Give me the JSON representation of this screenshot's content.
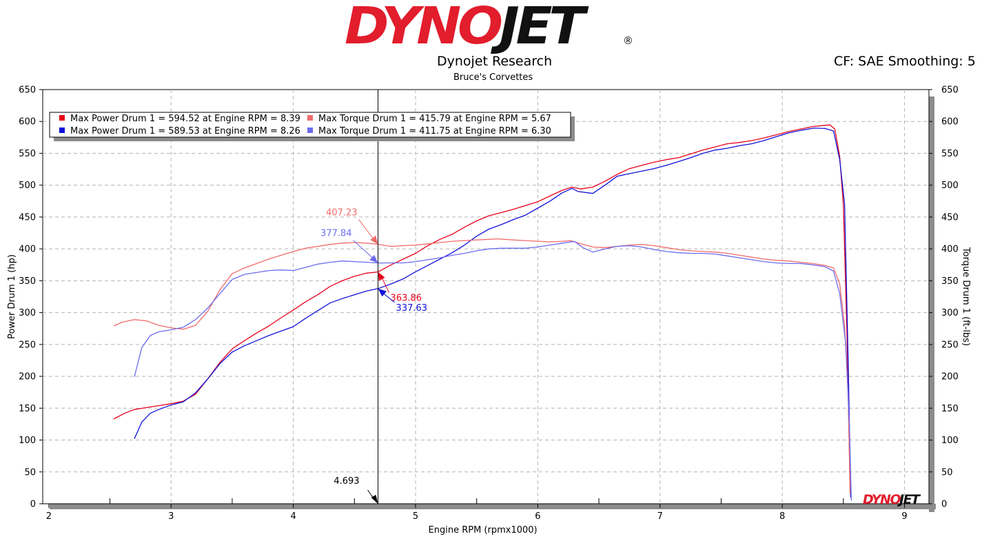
{
  "header": {
    "logo_part1": "DYNO",
    "logo_part2": "JET",
    "logo_reg": "®",
    "title": "Dynojet Research",
    "subtitle": "Bruce's Corvettes",
    "cf_info": "CF: SAE Smoothing: 5"
  },
  "colors": {
    "run1_power": "#e8001a",
    "run1_torque": "#f26b6b",
    "run2_power": "#1010d8",
    "run2_torque": "#6b6bf0",
    "cursor": "#000000"
  },
  "chart_data": {
    "type": "line",
    "xlabel": "Engine RPM (rpmx1000)",
    "ylabel": "Power Drum 1 (hp)",
    "y2label": "Torque Drum 1 (ft-lbs)",
    "xlim": [
      1.95,
      9.2
    ],
    "ylim": [
      0,
      650
    ],
    "y2lim": [
      0,
      650
    ],
    "x_ticks": [
      "2",
      "3",
      "4",
      "5",
      "6",
      "7",
      "8",
      "9"
    ],
    "y_ticks": [
      "0",
      "50",
      "100",
      "150",
      "200",
      "250",
      "300",
      "350",
      "400",
      "450",
      "500",
      "550",
      "600",
      "650"
    ],
    "grid": true,
    "legend_position": "top-left",
    "legend": [
      "Max Power Drum 1 = 594.52 at Engine RPM = 8.39",
      "Max Power Drum 1 = 589.53 at Engine RPM = 8.26",
      "Max Torque Drum 1 = 415.79 at Engine RPM = 5.67",
      "Max Torque Drum 1 = 411.75 at Engine RPM = 6.30"
    ],
    "cursor": {
      "x": 4.693,
      "label": "4.693",
      "readouts": [
        {
          "series": 2,
          "value": 407.23,
          "label": "407.23"
        },
        {
          "series": 3,
          "value": 377.84,
          "label": "377.84"
        },
        {
          "series": 0,
          "value": 363.86,
          "label": "363.86"
        },
        {
          "series": 1,
          "value": 337.63,
          "label": "337.63"
        }
      ]
    },
    "series": [
      {
        "axis": "left",
        "points": [
          [
            2.53,
            133
          ],
          [
            2.62,
            142
          ],
          [
            2.7,
            148
          ],
          [
            2.8,
            151
          ],
          [
            2.9,
            154
          ],
          [
            3.0,
            157
          ],
          [
            3.1,
            161
          ],
          [
            3.2,
            172
          ],
          [
            3.3,
            196
          ],
          [
            3.4,
            222
          ],
          [
            3.5,
            243
          ],
          [
            3.6,
            256
          ],
          [
            3.7,
            268
          ],
          [
            3.8,
            279
          ],
          [
            3.9,
            292
          ],
          [
            4.0,
            304
          ],
          [
            4.1,
            317
          ],
          [
            4.2,
            328
          ],
          [
            4.3,
            341
          ],
          [
            4.4,
            350
          ],
          [
            4.5,
            357
          ],
          [
            4.6,
            362
          ],
          [
            4.693,
            363.86
          ],
          [
            4.8,
            375
          ],
          [
            4.9,
            384
          ],
          [
            5.0,
            393
          ],
          [
            5.1,
            405
          ],
          [
            5.2,
            415
          ],
          [
            5.3,
            423
          ],
          [
            5.4,
            434
          ],
          [
            5.5,
            444
          ],
          [
            5.6,
            452
          ],
          [
            5.7,
            457
          ],
          [
            5.8,
            462
          ],
          [
            5.9,
            468
          ],
          [
            6.0,
            474
          ],
          [
            6.1,
            483
          ],
          [
            6.2,
            492
          ],
          [
            6.28,
            497
          ],
          [
            6.35,
            494
          ],
          [
            6.45,
            497
          ],
          [
            6.55,
            506
          ],
          [
            6.65,
            517
          ],
          [
            6.75,
            526
          ],
          [
            6.85,
            531
          ],
          [
            6.95,
            536
          ],
          [
            7.05,
            540
          ],
          [
            7.15,
            543
          ],
          [
            7.25,
            549
          ],
          [
            7.35,
            555
          ],
          [
            7.45,
            560
          ],
          [
            7.55,
            565
          ],
          [
            7.65,
            567
          ],
          [
            7.75,
            570
          ],
          [
            7.85,
            574
          ],
          [
            7.95,
            579
          ],
          [
            8.05,
            584
          ],
          [
            8.15,
            588
          ],
          [
            8.25,
            592
          ],
          [
            8.35,
            594
          ],
          [
            8.39,
            594.52
          ],
          [
            8.43,
            588
          ],
          [
            8.47,
            545
          ],
          [
            8.5,
            470
          ],
          [
            8.53,
            260
          ],
          [
            8.555,
            20
          ]
        ]
      },
      {
        "axis": "left",
        "points": [
          [
            2.7,
            102
          ],
          [
            2.76,
            128
          ],
          [
            2.83,
            142
          ],
          [
            2.9,
            148
          ],
          [
            3.0,
            155
          ],
          [
            3.1,
            160
          ],
          [
            3.2,
            174
          ],
          [
            3.3,
            196
          ],
          [
            3.4,
            220
          ],
          [
            3.5,
            238
          ],
          [
            3.6,
            248
          ],
          [
            3.7,
            256
          ],
          [
            3.8,
            264
          ],
          [
            3.9,
            271
          ],
          [
            4.0,
            278
          ],
          [
            4.1,
            291
          ],
          [
            4.2,
            303
          ],
          [
            4.3,
            315
          ],
          [
            4.4,
            322
          ],
          [
            4.5,
            328
          ],
          [
            4.6,
            334
          ],
          [
            4.693,
            337.63
          ],
          [
            4.8,
            345
          ],
          [
            4.9,
            353
          ],
          [
            5.0,
            364
          ],
          [
            5.1,
            374
          ],
          [
            5.2,
            384
          ],
          [
            5.3,
            394
          ],
          [
            5.4,
            406
          ],
          [
            5.5,
            420
          ],
          [
            5.6,
            431
          ],
          [
            5.7,
            438
          ],
          [
            5.8,
            446
          ],
          [
            5.9,
            453
          ],
          [
            6.0,
            464
          ],
          [
            6.1,
            475
          ],
          [
            6.2,
            488
          ],
          [
            6.28,
            495
          ],
          [
            6.33,
            490
          ],
          [
            6.45,
            487
          ],
          [
            6.55,
            500
          ],
          [
            6.65,
            514
          ],
          [
            6.75,
            518
          ],
          [
            6.85,
            522
          ],
          [
            6.95,
            526
          ],
          [
            7.05,
            531
          ],
          [
            7.15,
            537
          ],
          [
            7.25,
            543
          ],
          [
            7.35,
            550
          ],
          [
            7.45,
            555
          ],
          [
            7.55,
            558
          ],
          [
            7.65,
            562
          ],
          [
            7.75,
            565
          ],
          [
            7.85,
            570
          ],
          [
            7.95,
            576
          ],
          [
            8.05,
            582
          ],
          [
            8.15,
            586
          ],
          [
            8.26,
            589.53
          ],
          [
            8.35,
            589
          ],
          [
            8.42,
            585
          ],
          [
            8.47,
            540
          ],
          [
            8.51,
            470
          ],
          [
            8.54,
            220
          ],
          [
            8.56,
            10
          ]
        ]
      },
      {
        "axis": "right",
        "points": [
          [
            2.53,
            279
          ],
          [
            2.6,
            285
          ],
          [
            2.7,
            289
          ],
          [
            2.8,
            287
          ],
          [
            2.9,
            280
          ],
          [
            3.0,
            276
          ],
          [
            3.1,
            274
          ],
          [
            3.2,
            280
          ],
          [
            3.3,
            302
          ],
          [
            3.4,
            336
          ],
          [
            3.5,
            361
          ],
          [
            3.6,
            370
          ],
          [
            3.7,
            377
          ],
          [
            3.8,
            384
          ],
          [
            3.9,
            390
          ],
          [
            4.0,
            396
          ],
          [
            4.1,
            401
          ],
          [
            4.2,
            404
          ],
          [
            4.3,
            407
          ],
          [
            4.4,
            409
          ],
          [
            4.5,
            410
          ],
          [
            4.6,
            409
          ],
          [
            4.693,
            407.23
          ],
          [
            4.8,
            404
          ],
          [
            4.9,
            405
          ],
          [
            5.0,
            406
          ],
          [
            5.1,
            408
          ],
          [
            5.2,
            410
          ],
          [
            5.3,
            412
          ],
          [
            5.4,
            413
          ],
          [
            5.5,
            414
          ],
          [
            5.6,
            415
          ],
          [
            5.67,
            415.79
          ],
          [
            5.8,
            414
          ],
          [
            5.9,
            413
          ],
          [
            6.0,
            412
          ],
          [
            6.1,
            411
          ],
          [
            6.2,
            412
          ],
          [
            6.27,
            413
          ],
          [
            6.35,
            408
          ],
          [
            6.45,
            403
          ],
          [
            6.55,
            402
          ],
          [
            6.65,
            404
          ],
          [
            6.75,
            406
          ],
          [
            6.85,
            407
          ],
          [
            6.95,
            405
          ],
          [
            7.05,
            402
          ],
          [
            7.15,
            399
          ],
          [
            7.25,
            397
          ],
          [
            7.35,
            396
          ],
          [
            7.45,
            395
          ],
          [
            7.55,
            393
          ],
          [
            7.65,
            390
          ],
          [
            7.75,
            387
          ],
          [
            7.85,
            384
          ],
          [
            7.95,
            382
          ],
          [
            8.05,
            381
          ],
          [
            8.15,
            379
          ],
          [
            8.25,
            377
          ],
          [
            8.35,
            374
          ],
          [
            8.42,
            370
          ],
          [
            8.47,
            345
          ],
          [
            8.51,
            280
          ],
          [
            8.54,
            170
          ],
          [
            8.555,
            15
          ]
        ]
      },
      {
        "axis": "right",
        "points": [
          [
            2.7,
            199
          ],
          [
            2.76,
            245
          ],
          [
            2.83,
            264
          ],
          [
            2.9,
            270
          ],
          [
            3.0,
            273
          ],
          [
            3.1,
            277
          ],
          [
            3.2,
            289
          ],
          [
            3.3,
            307
          ],
          [
            3.4,
            330
          ],
          [
            3.5,
            352
          ],
          [
            3.6,
            360
          ],
          [
            3.7,
            363
          ],
          [
            3.8,
            366
          ],
          [
            3.9,
            367
          ],
          [
            4.0,
            366
          ],
          [
            4.1,
            371
          ],
          [
            4.2,
            376
          ],
          [
            4.3,
            379
          ],
          [
            4.4,
            381
          ],
          [
            4.5,
            380
          ],
          [
            4.6,
            379
          ],
          [
            4.693,
            377.84
          ],
          [
            4.8,
            378
          ],
          [
            4.9,
            378
          ],
          [
            5.0,
            380
          ],
          [
            5.1,
            383
          ],
          [
            5.2,
            386
          ],
          [
            5.3,
            390
          ],
          [
            5.4,
            393
          ],
          [
            5.5,
            397
          ],
          [
            5.6,
            400
          ],
          [
            5.7,
            401
          ],
          [
            5.8,
            401
          ],
          [
            5.9,
            401
          ],
          [
            6.0,
            403
          ],
          [
            6.1,
            406
          ],
          [
            6.2,
            409
          ],
          [
            6.3,
            411.75
          ],
          [
            6.37,
            402
          ],
          [
            6.45,
            395
          ],
          [
            6.55,
            400
          ],
          [
            6.65,
            404
          ],
          [
            6.75,
            405
          ],
          [
            6.85,
            403
          ],
          [
            6.95,
            399
          ],
          [
            7.05,
            396
          ],
          [
            7.15,
            394
          ],
          [
            7.25,
            393
          ],
          [
            7.35,
            393
          ],
          [
            7.45,
            392
          ],
          [
            7.55,
            389
          ],
          [
            7.65,
            386
          ],
          [
            7.75,
            383
          ],
          [
            7.85,
            380
          ],
          [
            7.95,
            378
          ],
          [
            8.05,
            377
          ],
          [
            8.15,
            377
          ],
          [
            8.25,
            375
          ],
          [
            8.35,
            372
          ],
          [
            8.42,
            365
          ],
          [
            8.47,
            330
          ],
          [
            8.52,
            250
          ],
          [
            8.55,
            120
          ],
          [
            8.565,
            5
          ]
        ]
      }
    ]
  }
}
